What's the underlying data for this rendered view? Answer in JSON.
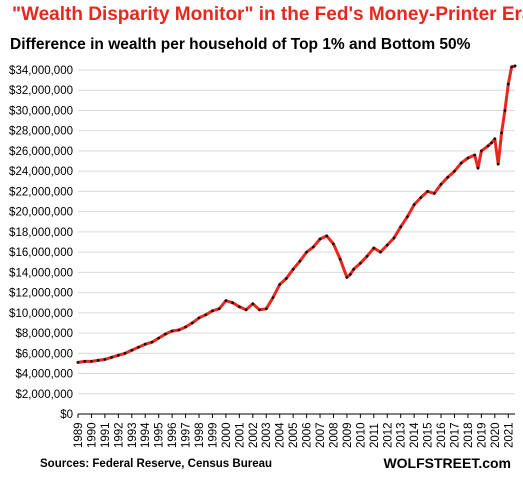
{
  "chart_data": {
    "type": "line",
    "title": "\"Wealth Disparity Monitor\"  in the Fed's Money-Printer Era",
    "subtitle": "Difference in wealth per household of Top 1% and Bottom 50%",
    "source": "Sources: Federal Reserve, Census Bureau",
    "brand": "WOLFSTREET.com",
    "ylim": [
      0,
      34000000
    ],
    "xlim": [
      1989,
      2021.5
    ],
    "y_ticks": [
      0,
      2000000,
      4000000,
      6000000,
      8000000,
      10000000,
      12000000,
      14000000,
      16000000,
      18000000,
      20000000,
      22000000,
      24000000,
      26000000,
      28000000,
      30000000,
      32000000,
      34000000
    ],
    "y_tick_labels": [
      "$0",
      "$2,000,000",
      "$4,000,000",
      "$6,000,000",
      "$8,000,000",
      "$10,000,000",
      "$12,000,000",
      "$14,000,000",
      "$16,000,000",
      "$18,000,000",
      "$20,000,000",
      "$22,000,000",
      "$24,000,000",
      "$26,000,000",
      "$28,000,000",
      "$30,000,000",
      "$32,000,000",
      "$34,000,000"
    ],
    "x_tick_labels": [
      "1989",
      "1990",
      "1991",
      "1992",
      "1993",
      "1994",
      "1995",
      "1996",
      "1997",
      "1998",
      "1999",
      "2000",
      "2001",
      "2002",
      "2003",
      "2004",
      "2005",
      "2006",
      "2007",
      "2008",
      "2009",
      "2010",
      "2011",
      "2012",
      "2013",
      "2014",
      "2015",
      "2016",
      "2017",
      "2018",
      "2019",
      "2020",
      "2021"
    ],
    "grid": true,
    "colors": {
      "line": "#e8281e",
      "markers": "#111111",
      "title": "#e8281e",
      "grid": "#d9d9d9"
    },
    "x": [
      1989.0,
      1989.5,
      1990.0,
      1990.5,
      1991.0,
      1991.5,
      1992.0,
      1992.5,
      1993.0,
      1993.5,
      1994.0,
      1994.5,
      1995.0,
      1995.5,
      1996.0,
      1996.5,
      1997.0,
      1997.5,
      1998.0,
      1998.5,
      1999.0,
      1999.5,
      2000.0,
      2000.5,
      2001.0,
      2001.5,
      2002.0,
      2002.5,
      2003.0,
      2003.5,
      2004.0,
      2004.5,
      2005.0,
      2005.5,
      2006.0,
      2006.5,
      2007.0,
      2007.5,
      2008.0,
      2008.5,
      2009.0,
      2009.25,
      2009.5,
      2010.0,
      2010.5,
      2011.0,
      2011.5,
      2012.0,
      2012.5,
      2013.0,
      2013.5,
      2014.0,
      2014.5,
      2015.0,
      2015.5,
      2016.0,
      2016.5,
      2017.0,
      2017.5,
      2018.0,
      2018.5,
      2018.75,
      2019.0,
      2019.5,
      2019.75,
      2020.0,
      2020.25,
      2020.5,
      2020.75,
      2021.0,
      2021.25,
      2021.5
    ],
    "values": [
      5100000,
      5200000,
      5200000,
      5300000,
      5400000,
      5600000,
      5800000,
      6000000,
      6300000,
      6600000,
      6900000,
      7100000,
      7500000,
      7900000,
      8200000,
      8300000,
      8600000,
      9000000,
      9500000,
      9800000,
      10200000,
      10400000,
      11200000,
      11000000,
      10600000,
      10300000,
      10900000,
      10300000,
      10400000,
      11500000,
      12800000,
      13400000,
      14300000,
      15100000,
      16000000,
      16500000,
      17300000,
      17600000,
      16800000,
      15300000,
      13500000,
      13800000,
      14300000,
      14900000,
      15600000,
      16400000,
      16000000,
      16700000,
      17400000,
      18500000,
      19500000,
      20700000,
      21400000,
      22000000,
      21800000,
      22700000,
      23400000,
      24000000,
      24800000,
      25300000,
      25600000,
      24300000,
      26000000,
      26500000,
      26800000,
      27200000,
      24700000,
      27800000,
      30000000,
      32600000,
      34300000,
      34400000
    ]
  }
}
